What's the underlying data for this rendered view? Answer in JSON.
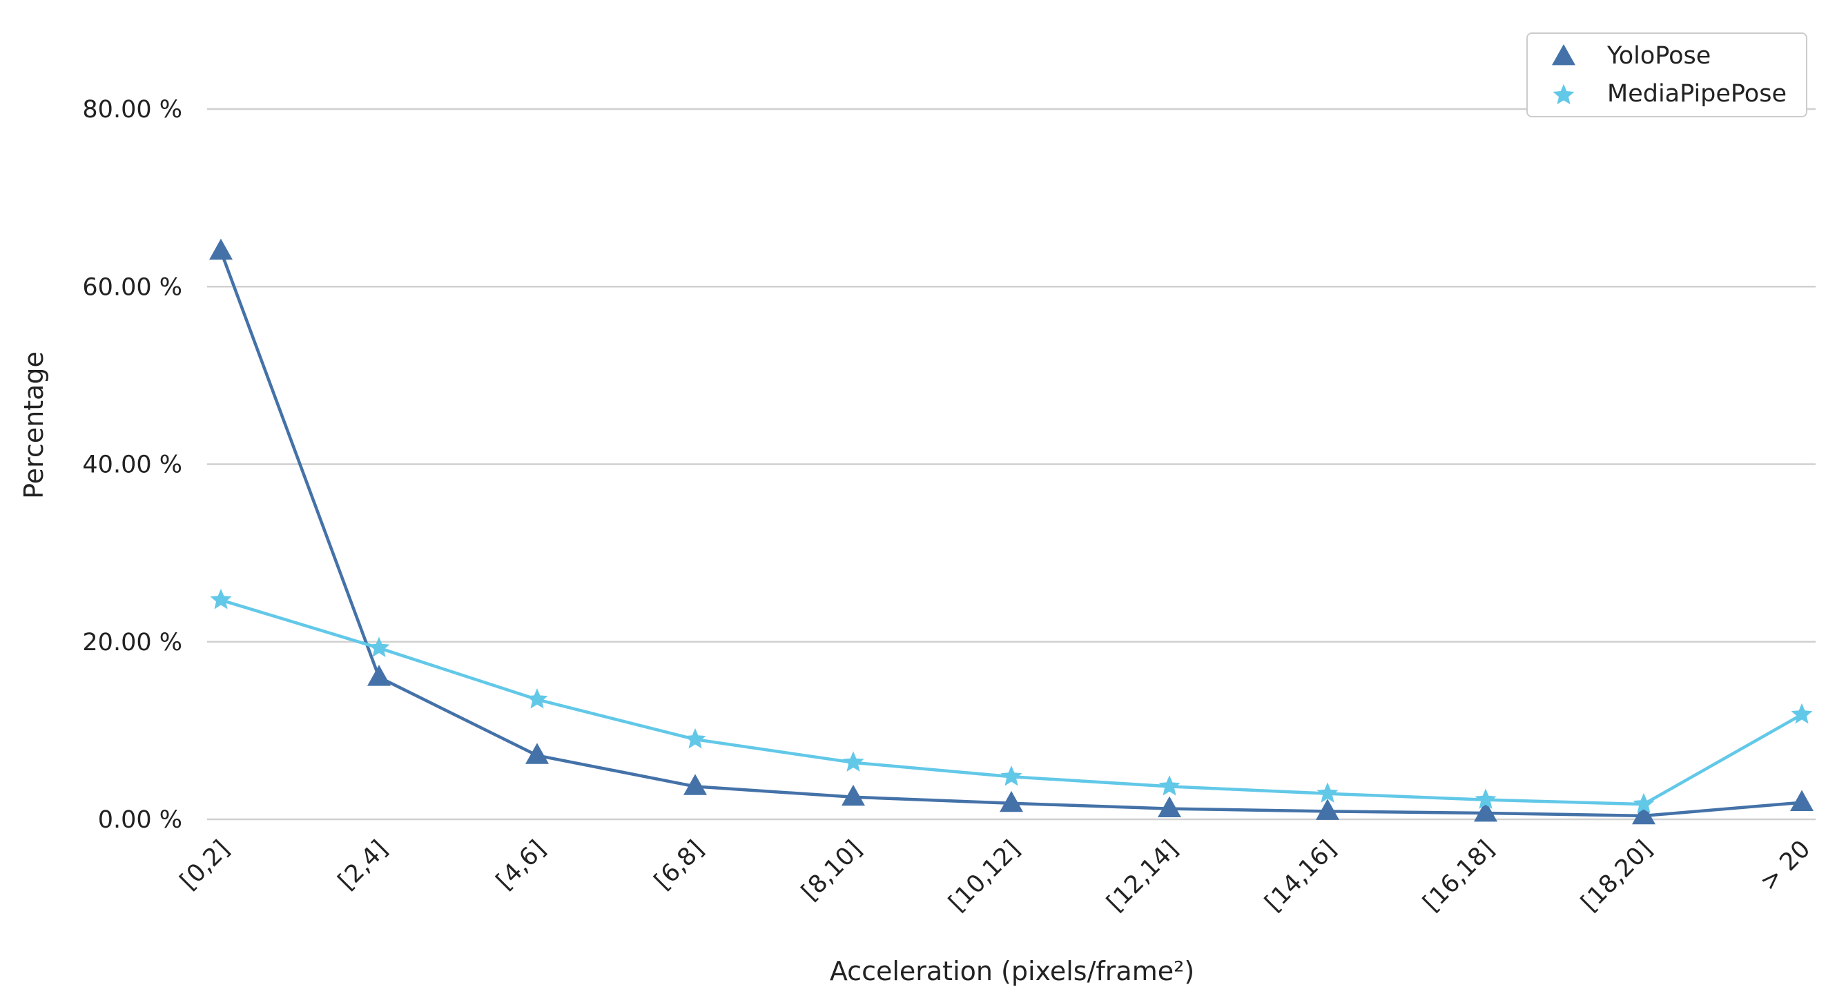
{
  "colors": {
    "yolopose": "#4472a8",
    "mediapipepose": "#62c8e8",
    "grid": "#d0d0d0",
    "background": "#ffffff"
  },
  "chart_data": {
    "type": "line",
    "categories": [
      "[0,2]",
      "[2,4]",
      "[4,6]",
      "[6,8]",
      "[8,10]",
      "[10,12]",
      "[12,14]",
      "[14,16]",
      "[16,18]",
      "[18,20]",
      "> 20"
    ],
    "series": [
      {
        "name": "YoloPose",
        "marker": "triangle",
        "color": "#4472a8",
        "values": [
          64.0,
          16.0,
          7.2,
          3.7,
          2.5,
          1.8,
          1.2,
          0.9,
          0.7,
          0.4,
          1.9
        ]
      },
      {
        "name": "MediaPipePose",
        "marker": "star",
        "color": "#62c8e8",
        "values": [
          24.7,
          19.3,
          13.5,
          9.0,
          6.4,
          4.8,
          3.7,
          2.9,
          2.2,
          1.7,
          11.8
        ]
      }
    ],
    "yticks": [
      "0.00 %",
      "20.00 %",
      "40.00 %",
      "60.00 %",
      "80.00 %"
    ],
    "ytick_values": [
      0,
      20,
      40,
      60,
      80
    ],
    "ylim": [
      0,
      85
    ],
    "xlabel": "Acceleration (pixels/frame²)",
    "ylabel": "Percentage",
    "grid": "horizontal",
    "legend_position": "top-right"
  }
}
